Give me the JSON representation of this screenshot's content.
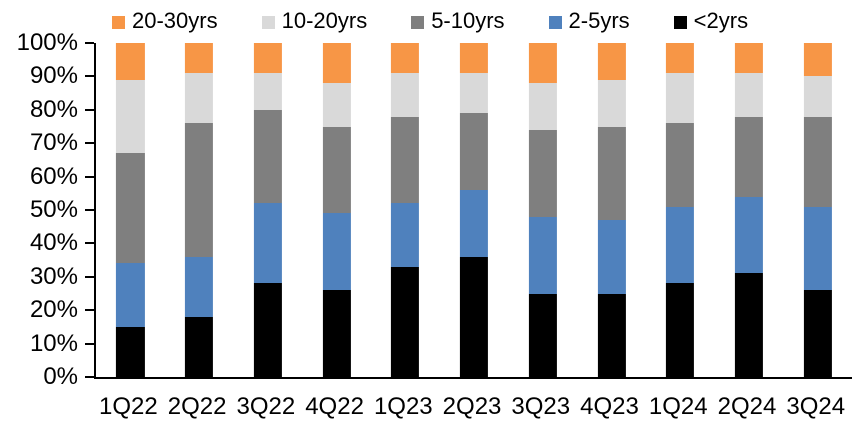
{
  "chart_data": {
    "type": "bar",
    "stacked": true,
    "percent_stacked": true,
    "title": "",
    "categories": [
      "1Q22",
      "2Q22",
      "3Q22",
      "4Q22",
      "1Q23",
      "2Q23",
      "3Q23",
      "4Q23",
      "1Q24",
      "2Q24",
      "3Q24"
    ],
    "series": [
      {
        "name": "<2yrs",
        "color": "#000000",
        "values": [
          15,
          18,
          28,
          26,
          33,
          36,
          25,
          25,
          28,
          31,
          26
        ]
      },
      {
        "name": "2-5yrs",
        "color": "#4F81BD",
        "values": [
          19,
          18,
          24,
          23,
          19,
          20,
          23,
          22,
          23,
          23,
          25
        ]
      },
      {
        "name": "5-10yrs",
        "color": "#7F7F7F",
        "values": [
          33,
          40,
          28,
          26,
          26,
          23,
          26,
          28,
          25,
          24,
          27
        ]
      },
      {
        "name": "10-20yrs",
        "color": "#D9D9D9",
        "values": [
          22,
          15,
          11,
          13,
          13,
          12,
          14,
          14,
          15,
          13,
          12
        ]
      },
      {
        "name": "20-30yrs",
        "color": "#F79646",
        "values": [
          11,
          9,
          9,
          12,
          9,
          9,
          12,
          11,
          9,
          9,
          10
        ]
      }
    ],
    "series_order_note": "series listed bottom-to-top of each stack",
    "legend": {
      "position": "top",
      "order": [
        "20-30yrs",
        "10-20yrs",
        "5-10yrs",
        "2-5yrs",
        "<2yrs"
      ]
    },
    "y_axis": {
      "min": 0,
      "max": 100,
      "tick_step": 10,
      "format": "percent",
      "tick_labels": [
        "0%",
        "10%",
        "20%",
        "30%",
        "40%",
        "50%",
        "60%",
        "70%",
        "80%",
        "90%",
        "100%"
      ]
    },
    "x_axis": {
      "tick_labels": [
        "1Q22",
        "2Q22",
        "3Q22",
        "4Q22",
        "1Q23",
        "2Q23",
        "3Q23",
        "4Q23",
        "1Q24",
        "2Q24",
        "3Q24"
      ]
    },
    "grid": false,
    "axis_color": "#000000",
    "background": "#FFFFFF"
  }
}
